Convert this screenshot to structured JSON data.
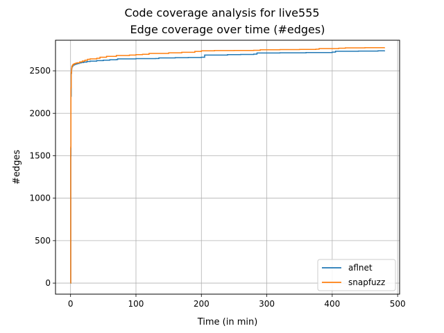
{
  "chart_data": {
    "type": "line",
    "suptitle": "Code coverage analysis for live555",
    "title": "Edge coverage over time (#edges)",
    "xlabel": "Time (in min)",
    "ylabel": "#edges",
    "xlim": [
      -23,
      503
    ],
    "ylim": [
      -130,
      2860
    ],
    "xticks": [
      0,
      100,
      200,
      300,
      400,
      500
    ],
    "yticks": [
      0,
      500,
      1000,
      1500,
      2000,
      2500
    ],
    "grid": true,
    "legend_position": "lower-right",
    "series": [
      {
        "name": "aflnet",
        "color": "#1f77b4",
        "x": [
          0,
          0.3,
          0.6,
          1,
          1.5,
          2,
          3,
          4,
          6,
          8,
          10,
          13,
          16,
          20,
          25,
          30,
          40,
          50,
          60,
          70,
          72,
          100,
          130,
          135,
          160,
          180,
          200,
          205,
          240,
          260,
          280,
          285,
          320,
          360,
          400,
          405,
          440,
          470,
          480
        ],
        "values": [
          0,
          1500,
          2200,
          2470,
          2520,
          2545,
          2558,
          2568,
          2575,
          2580,
          2585,
          2592,
          2598,
          2603,
          2610,
          2614,
          2620,
          2625,
          2630,
          2632,
          2640,
          2643,
          2645,
          2652,
          2655,
          2657,
          2660,
          2685,
          2690,
          2692,
          2697,
          2710,
          2712,
          2715,
          2720,
          2730,
          2732,
          2735,
          2740
        ]
      },
      {
        "name": "snapfuzz",
        "color": "#ff7f0e",
        "x": [
          0,
          0.3,
          0.6,
          1,
          1.5,
          2,
          3,
          4,
          6,
          8,
          10,
          14,
          18,
          22,
          26,
          30,
          40,
          45,
          55,
          70,
          90,
          100,
          110,
          120,
          150,
          170,
          190,
          200,
          220,
          250,
          280,
          290,
          320,
          350,
          375,
          380,
          410,
          420,
          450,
          480
        ],
        "values": [
          0,
          1600,
          2300,
          2480,
          2530,
          2555,
          2568,
          2578,
          2585,
          2590,
          2595,
          2605,
          2615,
          2625,
          2635,
          2640,
          2648,
          2660,
          2670,
          2680,
          2685,
          2690,
          2695,
          2705,
          2712,
          2718,
          2728,
          2735,
          2738,
          2740,
          2742,
          2748,
          2750,
          2752,
          2755,
          2762,
          2766,
          2770,
          2772,
          2775
        ]
      }
    ]
  }
}
